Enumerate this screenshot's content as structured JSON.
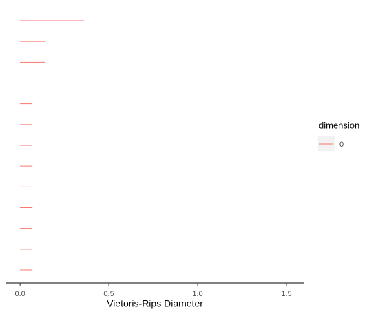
{
  "chart_data": {
    "type": "barcode",
    "x_label": "Vietoris-Rips Diameter",
    "legend_title": "dimension",
    "series": [
      {
        "name": "0",
        "color": "#f8766d",
        "births": [
          0,
          0,
          0,
          0,
          0,
          0,
          0,
          0,
          0,
          0,
          0,
          0,
          0
        ],
        "deaths": [
          0.36,
          0.14,
          0.14,
          0.07,
          0.07,
          0.07,
          0.07,
          0.07,
          0.07,
          0.07,
          0.07,
          0.07,
          0.07
        ]
      }
    ],
    "xlim": [
      -0.078,
      1.597
    ],
    "xticks": [
      {
        "value": 0,
        "label": "0.0"
      },
      0.5,
      {
        "value": 1,
        "label": "1.0"
      },
      {
        "value": 1.5,
        "label": "1.5"
      }
    ],
    "grid": false
  }
}
